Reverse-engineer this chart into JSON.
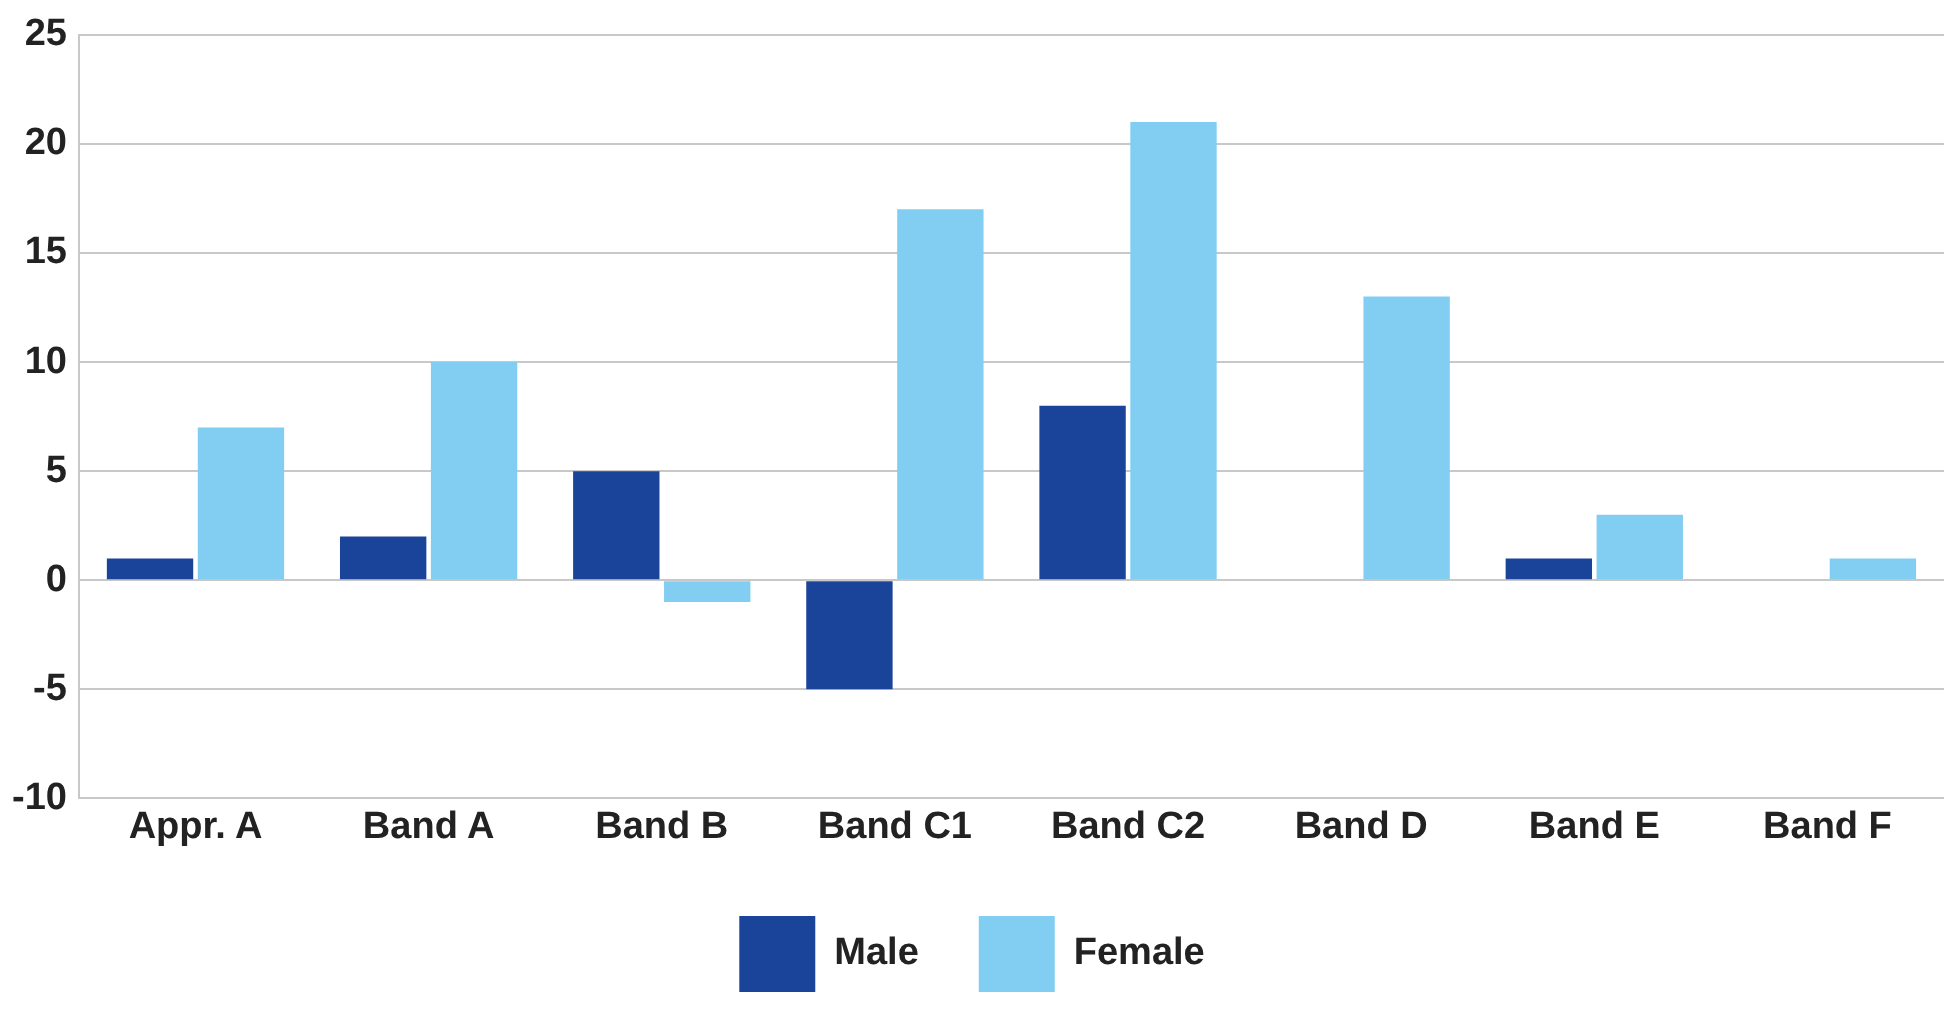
{
  "chart_data": {
    "type": "bar",
    "categories": [
      "Appr. A",
      "Band A",
      "Band B",
      "Band C1",
      "Band C2",
      "Band D",
      "Band E",
      "Band F"
    ],
    "series": [
      {
        "name": "Male",
        "color": "#1a449a",
        "values": [
          1,
          2,
          5,
          -5,
          8,
          0,
          1,
          0
        ]
      },
      {
        "name": "Female",
        "color": "#82cef2",
        "values": [
          7,
          10,
          -1,
          17,
          21,
          13,
          3,
          1
        ]
      }
    ],
    "ylim": [
      -10,
      25
    ],
    "yticks": [
      -10,
      -5,
      0,
      5,
      10,
      15,
      20,
      25
    ],
    "grid": "y",
    "legend": "bottom"
  }
}
